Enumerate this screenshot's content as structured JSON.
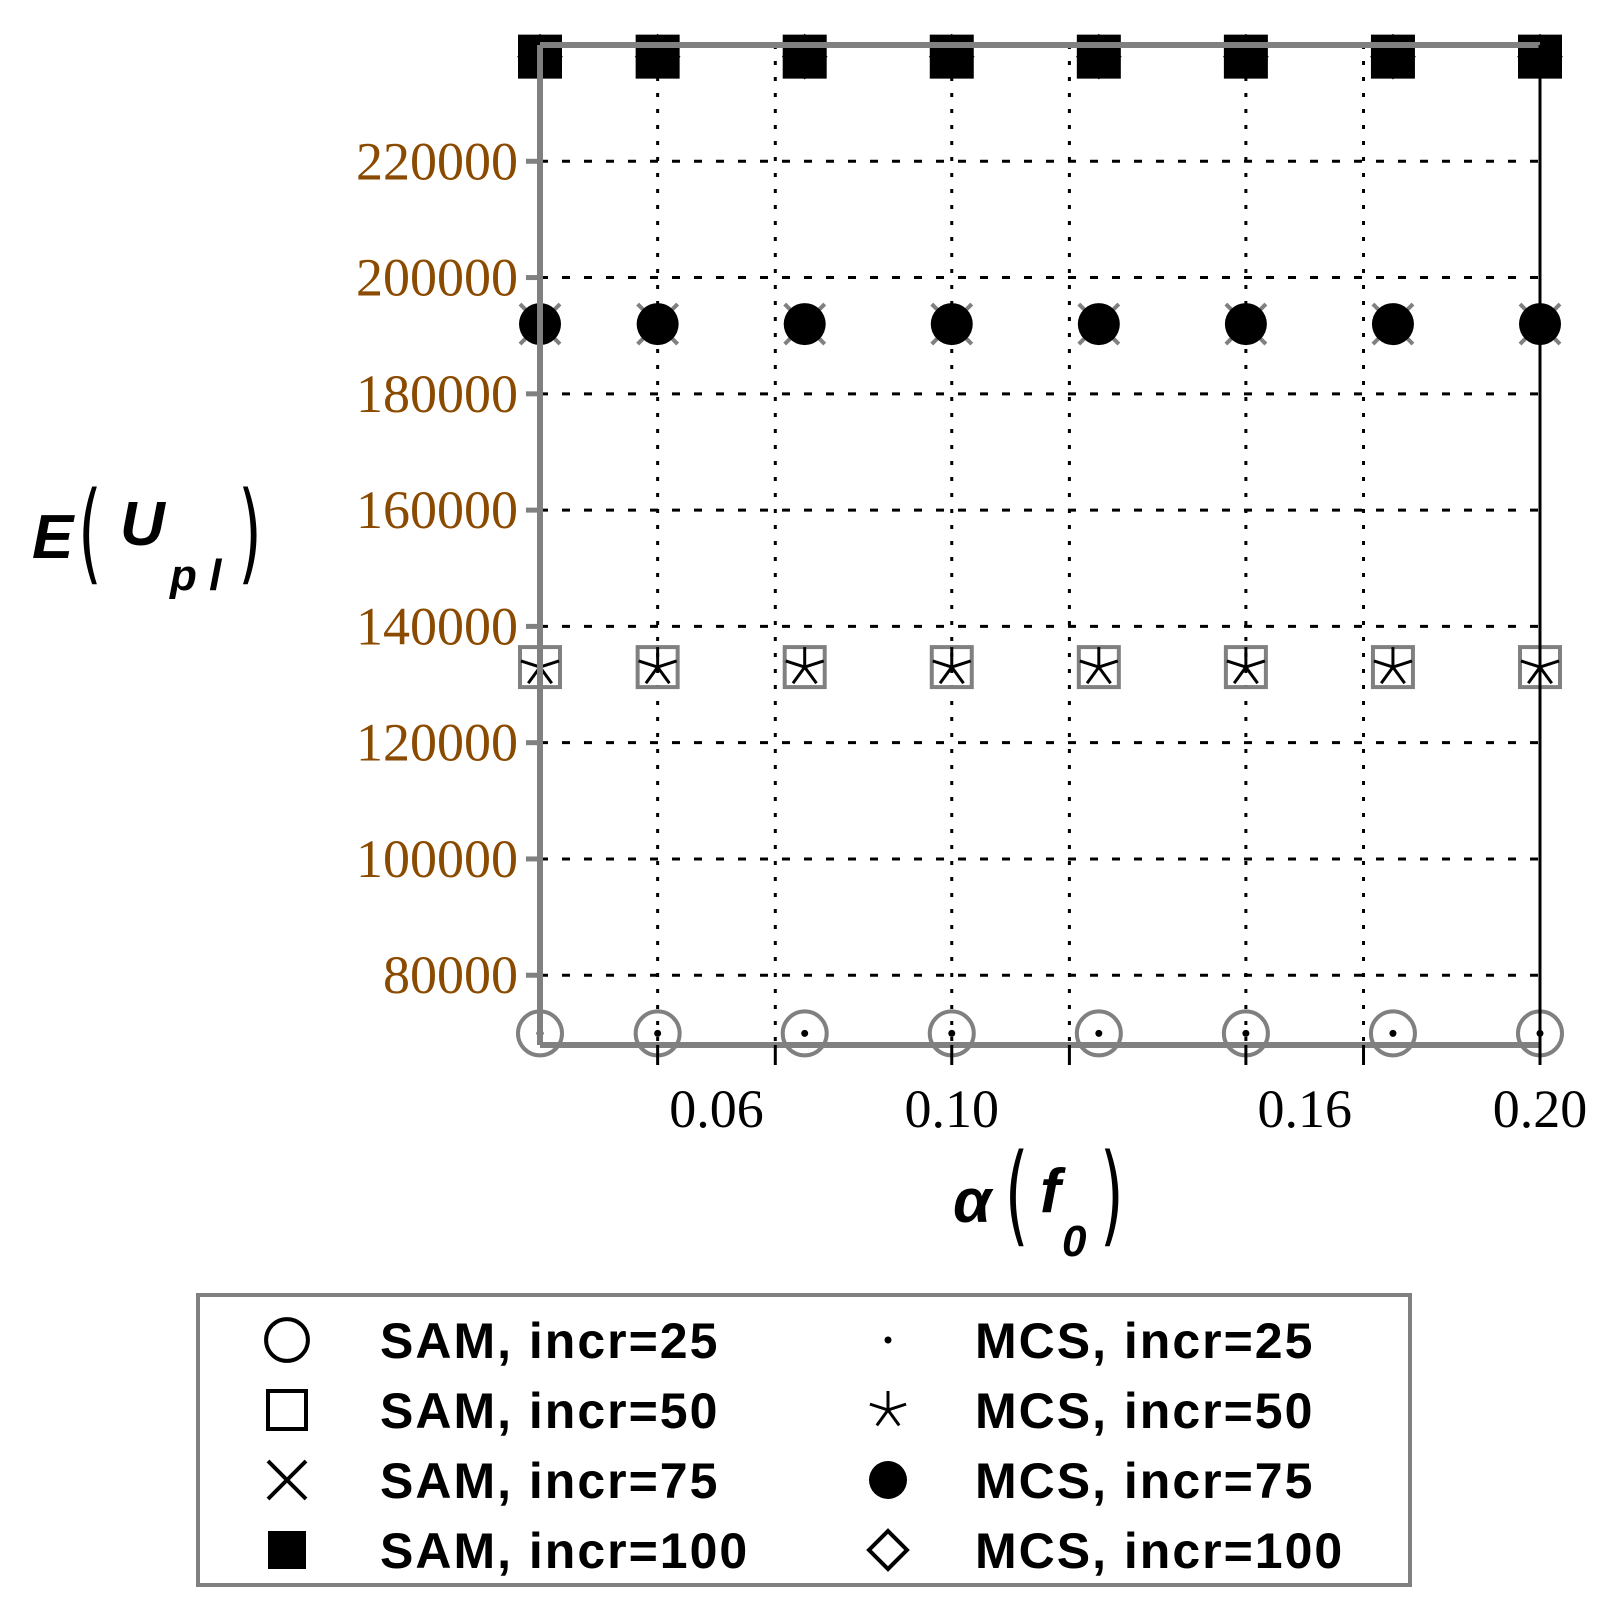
{
  "chart_data": {
    "type": "scatter",
    "x": [
      0.03,
      0.05,
      0.075,
      0.1,
      0.125,
      0.15,
      0.175,
      0.2
    ],
    "xlim": [
      0.03,
      0.2
    ],
    "ylim": [
      68000,
      240000
    ],
    "xticks": [
      0.06,
      0.1,
      0.16,
      0.2
    ],
    "xtick_labels": [
      "0.06",
      "0.10",
      "0.16",
      "0.20"
    ],
    "yticks": [
      80000,
      100000,
      120000,
      140000,
      160000,
      180000,
      200000,
      220000
    ],
    "ytick_labels": [
      "80000",
      "100000",
      "120000",
      "140000",
      "160000",
      "180000",
      "200000",
      "220000"
    ],
    "xgrid": [
      0.05,
      0.07,
      0.1,
      0.12,
      0.15,
      0.17,
      0.2
    ],
    "grid": true,
    "ylabel": {
      "main": "E",
      "sub": "p l",
      "inner": "U"
    },
    "xlabel": {
      "main": "α",
      "inner": "f",
      "sub": "0"
    },
    "legend_position": "bottom",
    "series": [
      {
        "name": "SAM, incr=25",
        "marker": "circle-open",
        "values": [
          70000,
          70000,
          70000,
          70000,
          70000,
          70000,
          70000,
          70000
        ]
      },
      {
        "name": "SAM, incr=50",
        "marker": "square-open",
        "values": [
          133000,
          133000,
          133000,
          133000,
          133000,
          133000,
          133000,
          133000
        ]
      },
      {
        "name": "SAM, incr=75",
        "marker": "x",
        "values": [
          192000,
          192000,
          192000,
          192000,
          192000,
          192000,
          192000,
          192000
        ]
      },
      {
        "name": "SAM, incr=100",
        "marker": "square-filled",
        "values": [
          238000,
          238000,
          238000,
          238000,
          238000,
          238000,
          238000,
          238000
        ]
      },
      {
        "name": "MCS, incr=25",
        "marker": "dot",
        "values": [
          70000,
          70000,
          70000,
          70000,
          70000,
          70000,
          70000,
          70000
        ]
      },
      {
        "name": "MCS, incr=50",
        "marker": "star",
        "values": [
          133000,
          133000,
          133000,
          133000,
          133000,
          133000,
          133000,
          133000
        ]
      },
      {
        "name": "MCS, incr=75",
        "marker": "circle-filled",
        "values": [
          192000,
          192000,
          192000,
          192000,
          192000,
          192000,
          192000,
          192000
        ]
      },
      {
        "name": "MCS, incr=100",
        "marker": "diamond-open",
        "values": [
          238000,
          238000,
          238000,
          238000,
          238000,
          238000,
          238000,
          238000
        ]
      }
    ]
  }
}
